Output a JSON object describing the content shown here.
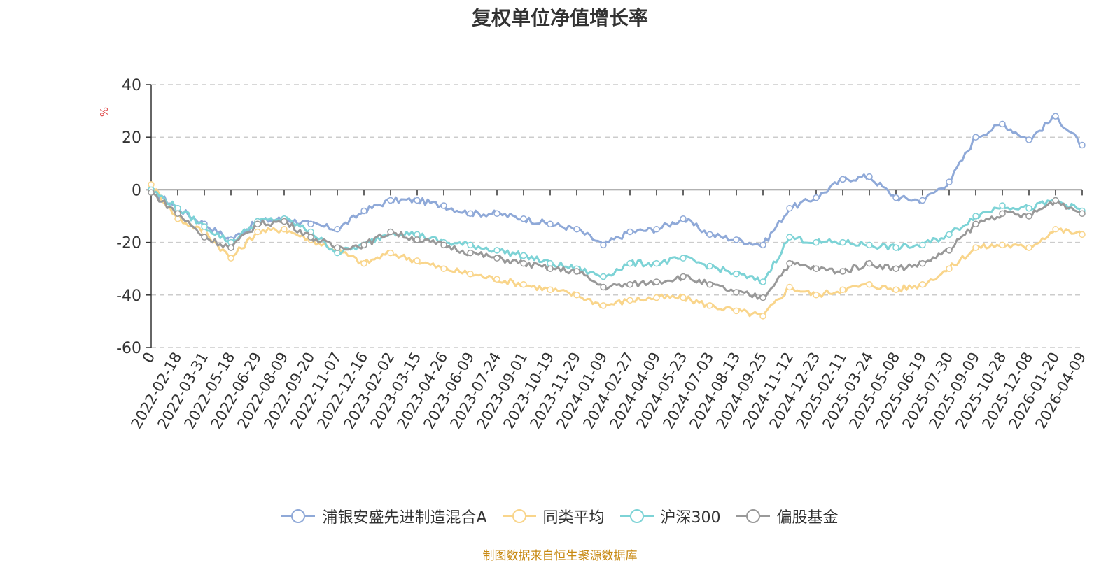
{
  "chart_data": {
    "type": "line",
    "title": "复权单位净值增长率",
    "ylabel": "%",
    "ylim": [
      -60,
      40
    ],
    "yticks": [
      "40",
      "20",
      "0",
      "-20",
      "-40",
      "-60"
    ],
    "grid": true,
    "legend_position": "bottom",
    "categories": [
      "0",
      "2022-02-18",
      "2022-03-31",
      "2022-05-18",
      "2022-06-29",
      "2022-08-09",
      "2022-09-20",
      "2022-11-07",
      "2022-12-16",
      "2023-02-02",
      "2023-03-15",
      "2023-04-26",
      "2023-06-09",
      "2023-07-24",
      "2023-09-01",
      "2023-10-19",
      "2023-11-29",
      "2024-01-09",
      "2024-02-27",
      "2024-04-09",
      "2024-05-23",
      "2024-07-03",
      "2024-08-13",
      "2024-09-25",
      "2024-11-12",
      "2024-12-23",
      "2025-02-11",
      "2025-03-24",
      "2025-05-08",
      "2025-06-19",
      "2025-07-30",
      "2025-09-09",
      "2025-10-28",
      "2025-12-08",
      "2026-01-20",
      "2026-04-09"
    ],
    "series": [
      {
        "name": "浦银安盛先进制造混合A",
        "color": "#8fa9d8",
        "values": [
          0,
          -7,
          -13,
          -19,
          -12,
          -11,
          -13,
          -15,
          -8,
          -4,
          -4,
          -6,
          -9,
          -9,
          -11,
          -13,
          -15,
          -21,
          -16,
          -15,
          -11,
          -17,
          -19,
          -21,
          -7,
          -3,
          4,
          5,
          -3,
          -4,
          3,
          20,
          25,
          19,
          28,
          17
        ]
      },
      {
        "name": "同类平均",
        "color": "#f9d58b",
        "values": [
          2,
          -11,
          -16,
          -26,
          -16,
          -15,
          -19,
          -23,
          -28,
          -24,
          -27,
          -30,
          -32,
          -34,
          -36,
          -38,
          -40,
          -44,
          -42,
          -41,
          -41,
          -44,
          -46,
          -48,
          -37,
          -40,
          -38,
          -36,
          -38,
          -36,
          -30,
          -22,
          -21,
          -22,
          -15,
          -17
        ]
      },
      {
        "name": "沪深300",
        "color": "#7dd3d6",
        "values": [
          0,
          -7,
          -14,
          -20,
          -12,
          -11,
          -16,
          -24,
          -21,
          -16,
          -17,
          -20,
          -21,
          -23,
          -25,
          -28,
          -30,
          -33,
          -28,
          -28,
          -26,
          -29,
          -32,
          -35,
          -18,
          -20,
          -20,
          -21,
          -22,
          -21,
          -17,
          -10,
          -6,
          -7,
          -4,
          -8
        ]
      },
      {
        "name": "偏股基金",
        "color": "#999999",
        "values": [
          -1,
          -9,
          -18,
          -22,
          -13,
          -12,
          -18,
          -22,
          -21,
          -16,
          -19,
          -21,
          -24,
          -26,
          -28,
          -30,
          -31,
          -37,
          -36,
          -35,
          -33,
          -36,
          -39,
          -41,
          -28,
          -30,
          -31,
          -28,
          -30,
          -28,
          -23,
          -13,
          -9,
          -10,
          -4,
          -9
        ]
      }
    ]
  },
  "source_note": "制图数据来自恒生聚源数据库"
}
